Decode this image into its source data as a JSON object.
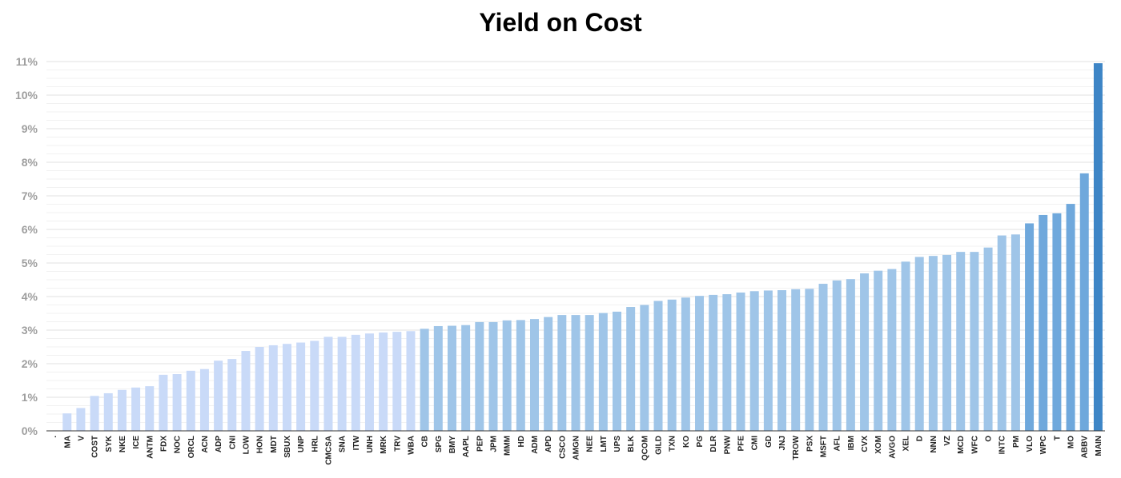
{
  "chart_data": {
    "type": "bar",
    "title": "Yield on Cost",
    "xlabel": "",
    "ylabel": "",
    "ylim": [
      0,
      11
    ],
    "y_ticks": [
      "0%",
      "1%",
      "2%",
      "3%",
      "4%",
      "5%",
      "6%",
      "7%",
      "8%",
      "9%",
      "10%",
      "11%"
    ],
    "grid": true,
    "legend": "none",
    "colors": {
      "light": "#c9daf8",
      "medium": "#9fc5e8",
      "strong": "#6fa8dc",
      "deep": "#3d85c6",
      "gridline": "#e0e0e0",
      "axis": "#333333"
    },
    "categories": [
      ".",
      "MA",
      "V",
      "COST",
      "SYK",
      "NKE",
      "ICE",
      "ANTM",
      "FDX",
      "NOC",
      "ORCL",
      "ACN",
      "ADP",
      "CNI",
      "LOW",
      "HON",
      "MDT",
      "SBUX",
      "UNP",
      "HRL",
      "CMCSA",
      "SNA",
      "ITW",
      "UNH",
      "MRK",
      "TRV",
      "WBA",
      "CB",
      "SPG",
      "BMY",
      "AAPL",
      "PEP",
      "JPM",
      "MMM",
      "HD",
      "ADM",
      "APD",
      "CSCO",
      "AMGN",
      "NEE",
      "LMT",
      "UPS",
      "BLK",
      "QCOM",
      "GILD",
      "TXN",
      "KO",
      "PG",
      "DLR",
      "PNW",
      "PFE",
      "CMI",
      "GD",
      "JNJ",
      "TROW",
      "PSX",
      "MSFT",
      "AFL",
      "IBM",
      "CVX",
      "XOM",
      "AVGO",
      "XEL",
      "D",
      "NNN",
      "VZ",
      "MCD",
      "WFC",
      "O",
      "INTC",
      "PM",
      "VLO",
      "WPC",
      "T",
      "MO",
      "ABBV",
      "MAIN"
    ],
    "values": [
      0,
      0.52,
      0.68,
      1.04,
      1.12,
      1.22,
      1.29,
      1.33,
      1.67,
      1.69,
      1.79,
      1.84,
      2.09,
      2.14,
      2.38,
      2.5,
      2.55,
      2.59,
      2.63,
      2.68,
      2.8,
      2.8,
      2.86,
      2.9,
      2.93,
      2.95,
      2.97,
      3.04,
      3.12,
      3.13,
      3.15,
      3.24,
      3.24,
      3.29,
      3.3,
      3.33,
      3.39,
      3.45,
      3.45,
      3.45,
      3.51,
      3.55,
      3.69,
      3.75,
      3.87,
      3.91,
      3.97,
      4.02,
      4.05,
      4.07,
      4.12,
      4.16,
      4.18,
      4.19,
      4.22,
      4.23,
      4.38,
      4.48,
      4.52,
      4.69,
      4.77,
      4.82,
      5.04,
      5.18,
      5.21,
      5.24,
      5.33,
      5.33,
      5.46,
      5.82,
      5.85,
      6.18,
      6.43,
      6.48,
      6.76,
      7.67,
      10.95
    ]
  }
}
